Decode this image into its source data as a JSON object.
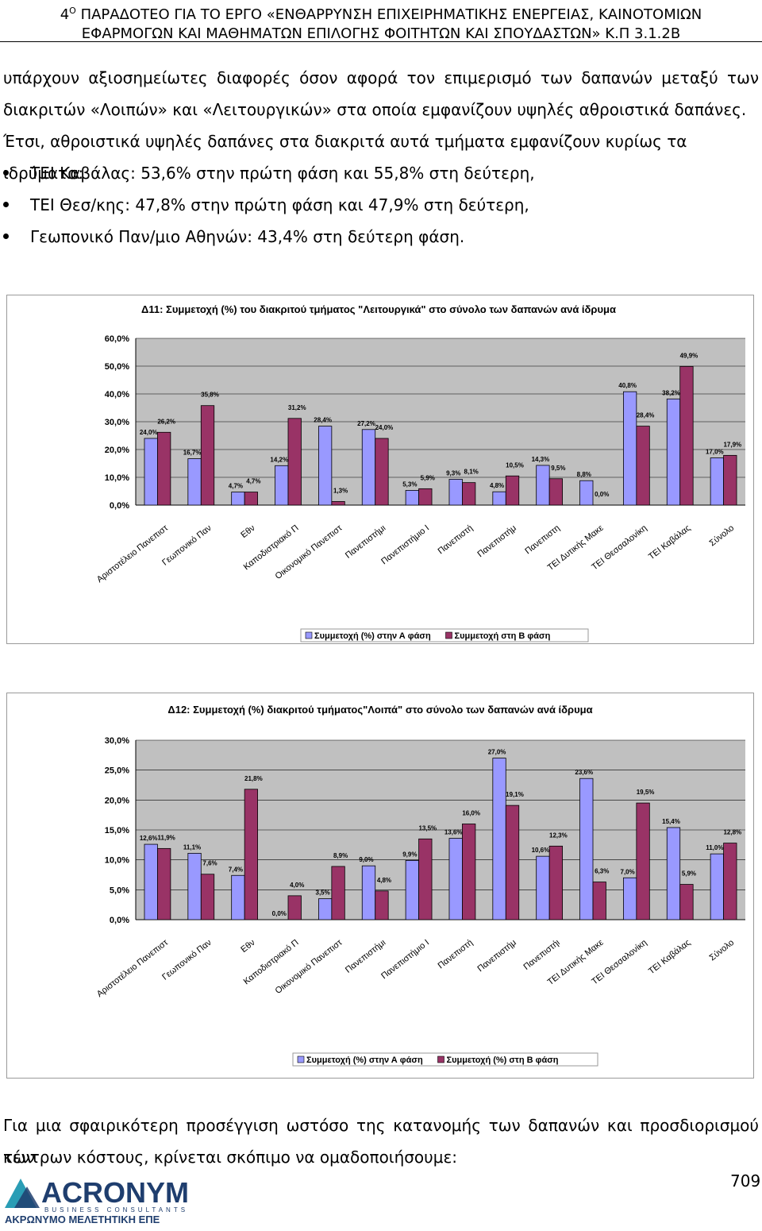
{
  "header": {
    "line1_num": "4",
    "line1_sup": "Ο",
    "line1_text": "ΠΑΡΑΔΟΤΕΟ ΓΙΑ ΤΟ ΕΡΓΟ «ΕΝΘΑΡΡΥΝΣΗ ΕΠΙΧΕΙΡΗΜΑΤΙΚΗΣ ΕΝΕΡΓΕΙΑΣ, ΚΑΙΝΟΤΟΜΙΩΝ",
    "line2_text": "ΕΦΑΡΜΟΓΩΝ ΚΑΙ ΜΑΘΗΜΑΤΩΝ ΕΠΙΛΟΓΗΣ ΦΟΙΤΗΤΩΝ ΚΑΙ ΣΠΟΥΔΑΣΤΩΝ» Κ.Π 3.1.2Β"
  },
  "intro": {
    "line1": "υπάρχουν αξιοσημείωτες διαφορές όσον αφορά τον επιμερισμό των δαπανών μεταξύ των",
    "line2": "διακριτών «Λοιπών» και «Λειτουργικών» στα οποία εμφανίζουν υψηλές αθροιστικά δαπάνες.",
    "line3": "Έτσι, αθροιστικά υψηλές δαπάνες στα διακριτά αυτά τμήματα εμφανίζουν κυρίως τα ιδρύματα:"
  },
  "bullets": [
    "ΤΕΙ Καβάλας: 53,6% στην πρώτη φάση και 55,8% στη δεύτερη,",
    "ΤΕΙ Θεσ/κης: 47,8% στην πρώτη φάση και 47,9% στη δεύτερη,",
    "Γεωπονικό Παν/μιο Αθηνών: 43,4% στη δεύτερη φάση."
  ],
  "chart_data": [
    {
      "type": "bar",
      "title": "Δ11: Συμμετοχή (%) του διακριτού τμήματος \"Λειτουργικά\" στο σύνολο των δαπανών ανά ίδρυμα",
      "categories": [
        "Αριστοτέλειο Πανεπιστ",
        "Γεωπονικό Παν",
        "Εθν",
        "Καποδιστριακό Π",
        "Οικονομικό Πανεπιστ",
        "Πανεπιστήμι",
        "Πανεπιστήμιο Ι",
        "Πανεπιστή",
        "Πανεπιστήμ",
        "Πανεπιστη",
        "ΤΕΙ Δυτικής Μακε",
        "ΤΕΙ Θεσσαλονίκη",
        "ΤΕΙ Καβάλας",
        "Σύνολο"
      ],
      "ylim": [
        0,
        60
      ],
      "yticks": [
        "0,0%",
        "10,0%",
        "20,0%",
        "30,0%",
        "40,0%",
        "50,0%",
        "60,0%"
      ],
      "series": [
        {
          "name": "Συμμετοχή (%) στην Α φάση",
          "color": "#9999ff",
          "values": [
            24.0,
            16.7,
            4.7,
            14.2,
            28.4,
            27.2,
            5.3,
            9.3,
            4.8,
            14.3,
            8.8,
            40.8,
            38.2,
            17.0
          ],
          "labels": [
            "24,0%",
            "16,7%",
            "4,7%",
            "14,2%",
            "28,4%",
            "27,2%",
            "5,3%",
            "9,3%",
            "4,8%",
            "14,3%",
            "8,8%",
            "40,8%",
            "38,2%",
            "17,0%"
          ]
        },
        {
          "name": "Συμμετοχή στη Β φάση",
          "color": "#993366",
          "values": [
            26.2,
            35.8,
            4.7,
            31.2,
            1.3,
            24.0,
            5.9,
            8.1,
            10.5,
            9.5,
            0.0,
            28.4,
            49.9,
            17.9
          ],
          "labels": [
            "26,2%",
            "35,8%",
            "4,7%",
            "31,2%",
            "1,3%",
            "24,0%",
            "5,9%",
            "8,1%",
            "10,5%",
            "9,5%",
            "0,0%",
            "28,4%",
            "49,9%",
            "17,9%"
          ]
        }
      ],
      "legend": "bottom"
    },
    {
      "type": "bar",
      "title": "Δ12: Συμμετοχή (%) διακριτού τμήματος\"Λοιπά\" στο σύνολο των δαπανών ανά  ίδρυμα",
      "categories": [
        "Αριστοτέλειο Πανεπιστ",
        "Γεωπονικό Παν",
        "Εθν",
        "Καποδιστριακό Π",
        "Οικονομικό Πανεπιστ",
        "Πανεπιστήμι",
        "Πανεπιστήμιο Ι",
        "Πανεπιστή",
        "Πανεπιστήμ",
        "Πανεπιστήι",
        "ΤΕΙ Δυτικής Μακε",
        "ΤΕΙ Θεσσαλονίκη",
        "ΤΕΙ Καβάλας",
        "Σύνολο"
      ],
      "ylim": [
        0,
        30
      ],
      "yticks": [
        "0,0%",
        "5,0%",
        "10,0%",
        "15,0%",
        "20,0%",
        "25,0%",
        "30,0%"
      ],
      "series": [
        {
          "name": "Συμμετοχή (%) στην Α φάση",
          "color": "#9999ff",
          "values": [
            12.6,
            11.1,
            7.4,
            0.0,
            3.5,
            9.0,
            9.9,
            13.6,
            27.0,
            10.6,
            23.6,
            7.0,
            15.4,
            11.0
          ],
          "labels": [
            "12,6%",
            "11,1%",
            "7,4%",
            "0,0%",
            "3,5%",
            "9,0%",
            "9,9%",
            "13,6%",
            "27,0%",
            "10,6%",
            "23,6%",
            "7,0%",
            "15,4%",
            "11,0%"
          ]
        },
        {
          "name": "Συμμετοχή (%) στη Β φάση",
          "color": "#993366",
          "values": [
            11.9,
            7.6,
            21.8,
            4.0,
            8.9,
            4.8,
            13.5,
            16.0,
            19.1,
            12.3,
            6.3,
            19.5,
            5.9,
            12.8
          ],
          "labels": [
            "11,9%",
            "7,6%",
            "21,8%",
            "4,0%",
            "8,9%",
            "4,8%",
            "13,5%",
            "16,0%",
            "19,1%",
            "12,3%",
            "6,3%",
            "19,5%",
            "5,9%",
            "12,8%"
          ]
        }
      ],
      "legend": "bottom"
    }
  ],
  "outro": {
    "line1": "Για μια σφαιρικότερη προσέγγιση ωστόσο της κατανομής των δαπανών και προσδιορισμού των",
    "line2": "κέντρων κόστους, κρίνεται σκόπιμο να ομαδοποιήσουμε:"
  },
  "page_number": "709",
  "logo": {
    "name": "ACRONYM",
    "tagline": "BUSINESS CONSULTANTS",
    "subtitle": "ΑΚΡΩΝΥΜΟ ΜΕΛΕΤΗΤΙΚΗ ΕΠΕ",
    "color_blue": "#1f3e6e",
    "color_teal": "#2a9db5"
  }
}
